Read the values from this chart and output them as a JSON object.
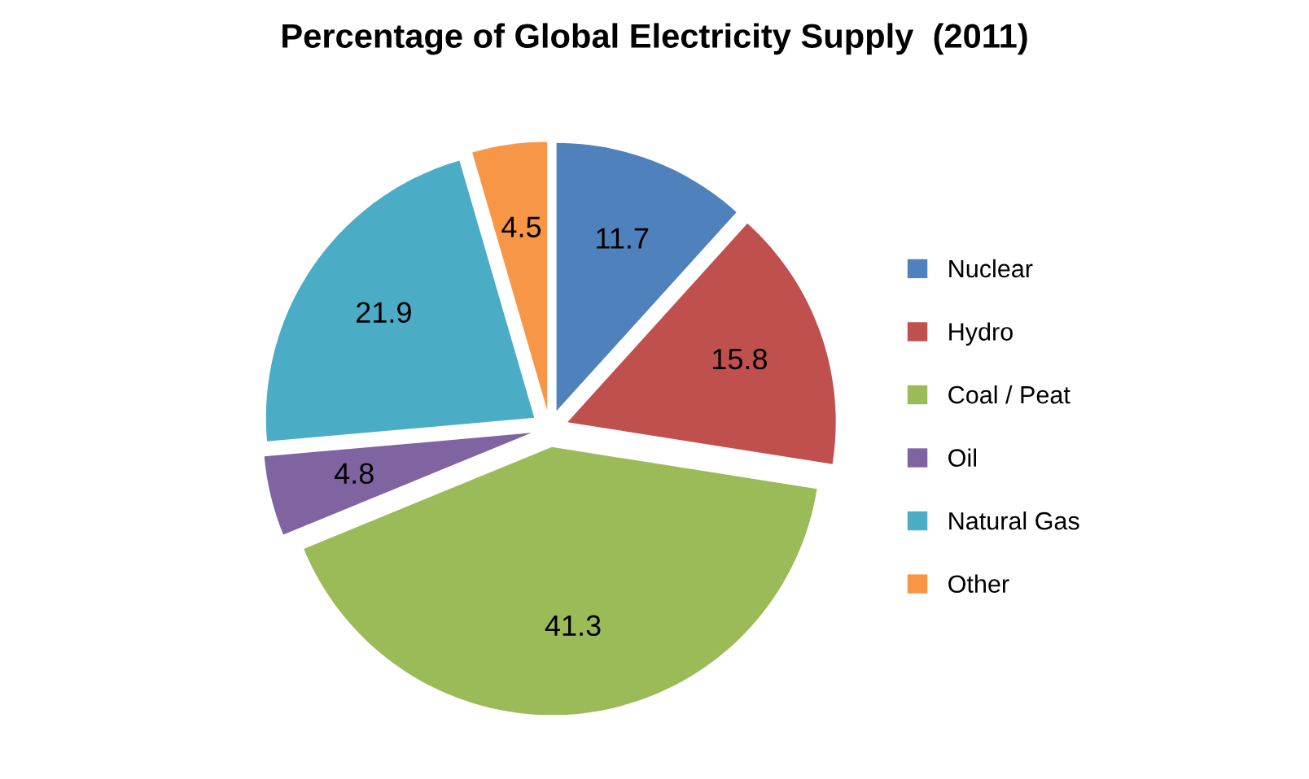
{
  "chart_data": {
    "type": "pie",
    "title": "Percentage of Global Electricity Supply  (2011)",
    "categories": [
      "Nuclear",
      "Hydro",
      "Coal / Peat",
      "Oil",
      "Natural Gas",
      "Other"
    ],
    "values": [
      11.7,
      15.8,
      41.3,
      4.8,
      21.9,
      4.5
    ],
    "colors": [
      "#4f81bd",
      "#c0504d",
      "#9bbb59",
      "#8064a2",
      "#4bacc6",
      "#f79646"
    ],
    "data_labels": true,
    "legend": "right"
  }
}
